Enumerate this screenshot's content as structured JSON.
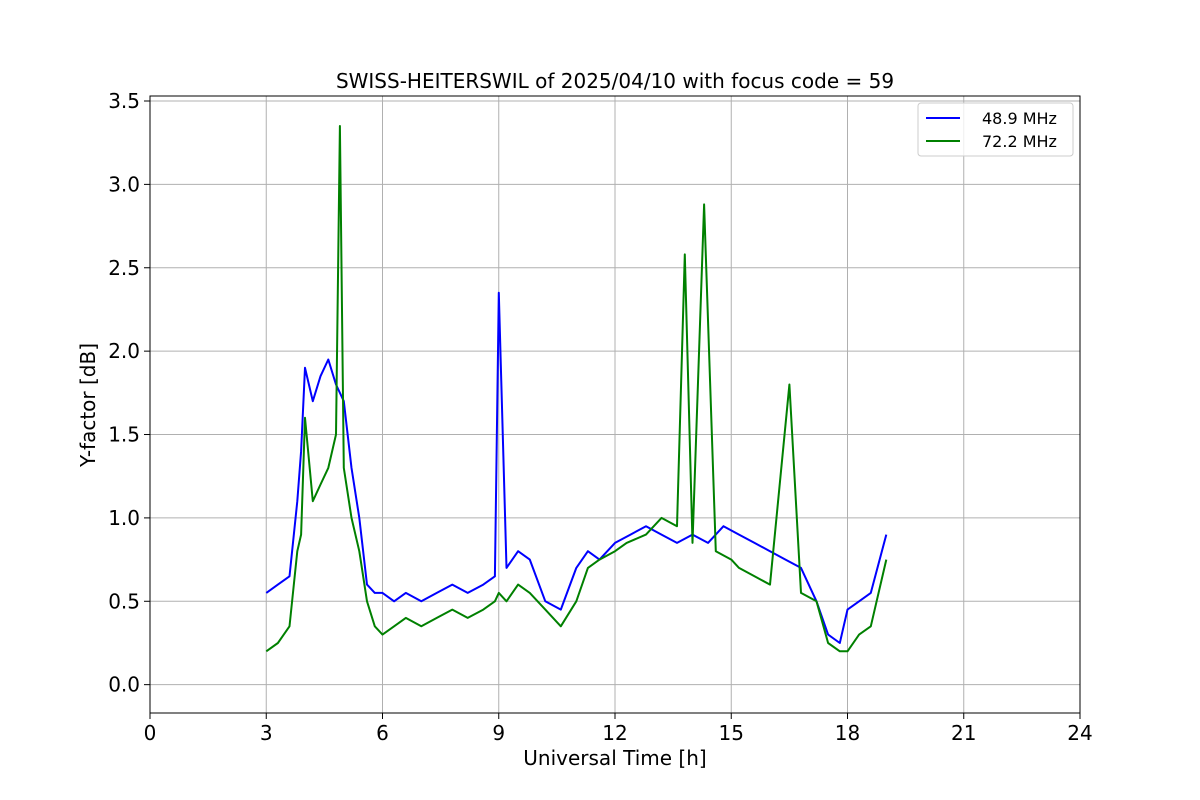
{
  "chart_data": {
    "type": "line",
    "title": "SWISS-HEITERSWIL of 2025/04/10 with focus code = 59",
    "xlabel": "Universal Time [h]",
    "ylabel": "Y-factor [dB]",
    "xlim": [
      0,
      24
    ],
    "ylim": [
      -0.17,
      3.53
    ],
    "x_ticks": [
      0,
      3,
      6,
      9,
      12,
      15,
      18,
      21,
      24
    ],
    "x_tick_labels": [
      "0",
      "3",
      "6",
      "9",
      "12",
      "15",
      "18",
      "21",
      "24"
    ],
    "y_ticks": [
      0.0,
      0.5,
      1.0,
      1.5,
      2.0,
      2.5,
      3.0,
      3.5
    ],
    "y_tick_labels": [
      "0.0",
      "0.5",
      "1.0",
      "1.5",
      "2.0",
      "2.5",
      "3.0",
      "3.5"
    ],
    "grid": true,
    "legend_position": "top-right",
    "series": [
      {
        "name": "48.9 MHz",
        "color": "#0000ff",
        "x": [
          3.0,
          3.3,
          3.6,
          3.8,
          3.9,
          4.0,
          4.2,
          4.4,
          4.6,
          4.8,
          5.0,
          5.2,
          5.4,
          5.6,
          5.8,
          6.0,
          6.3,
          6.6,
          7.0,
          7.4,
          7.8,
          8.2,
          8.6,
          8.9,
          9.0,
          9.2,
          9.5,
          9.8,
          10.2,
          10.6,
          11.0,
          11.3,
          11.6,
          12.0,
          12.4,
          12.8,
          13.2,
          13.6,
          14.0,
          14.4,
          14.8,
          15.2,
          15.6,
          16.0,
          16.4,
          16.8,
          17.2,
          17.5,
          17.8,
          18.0,
          18.3,
          18.6,
          19.0
        ],
        "y": [
          0.55,
          0.6,
          0.65,
          1.1,
          1.4,
          1.9,
          1.7,
          1.85,
          1.95,
          1.8,
          1.7,
          1.3,
          1.0,
          0.6,
          0.55,
          0.55,
          0.5,
          0.55,
          0.5,
          0.55,
          0.6,
          0.55,
          0.6,
          0.65,
          2.35,
          0.7,
          0.8,
          0.75,
          0.5,
          0.45,
          0.7,
          0.8,
          0.75,
          0.85,
          0.9,
          0.95,
          0.9,
          0.85,
          0.9,
          0.85,
          0.95,
          0.9,
          0.85,
          0.8,
          0.75,
          0.7,
          0.5,
          0.3,
          0.25,
          0.45,
          0.5,
          0.55,
          0.9
        ]
      },
      {
        "name": "72.2 MHz",
        "color": "#008000",
        "x": [
          3.0,
          3.3,
          3.6,
          3.8,
          3.9,
          4.0,
          4.2,
          4.4,
          4.6,
          4.8,
          4.9,
          5.0,
          5.2,
          5.4,
          5.6,
          5.8,
          6.0,
          6.3,
          6.6,
          7.0,
          7.4,
          7.8,
          8.2,
          8.6,
          8.9,
          9.0,
          9.2,
          9.5,
          9.8,
          10.2,
          10.6,
          11.0,
          11.3,
          11.6,
          12.0,
          12.3,
          12.8,
          13.2,
          13.6,
          13.8,
          14.0,
          14.3,
          14.6,
          15.0,
          15.2,
          15.6,
          16.0,
          16.5,
          16.8,
          17.2,
          17.5,
          17.8,
          18.0,
          18.3,
          18.6,
          19.0
        ],
        "y": [
          0.2,
          0.25,
          0.35,
          0.8,
          0.9,
          1.6,
          1.1,
          1.2,
          1.3,
          1.5,
          3.35,
          1.3,
          1.0,
          0.8,
          0.5,
          0.35,
          0.3,
          0.35,
          0.4,
          0.35,
          0.4,
          0.45,
          0.4,
          0.45,
          0.5,
          0.55,
          0.5,
          0.6,
          0.55,
          0.45,
          0.35,
          0.5,
          0.7,
          0.75,
          0.8,
          0.85,
          0.9,
          1.0,
          0.95,
          2.58,
          0.85,
          2.88,
          0.8,
          0.75,
          0.7,
          0.65,
          0.6,
          1.8,
          0.55,
          0.5,
          0.25,
          0.2,
          0.2,
          0.3,
          0.35,
          0.75
        ]
      }
    ]
  }
}
